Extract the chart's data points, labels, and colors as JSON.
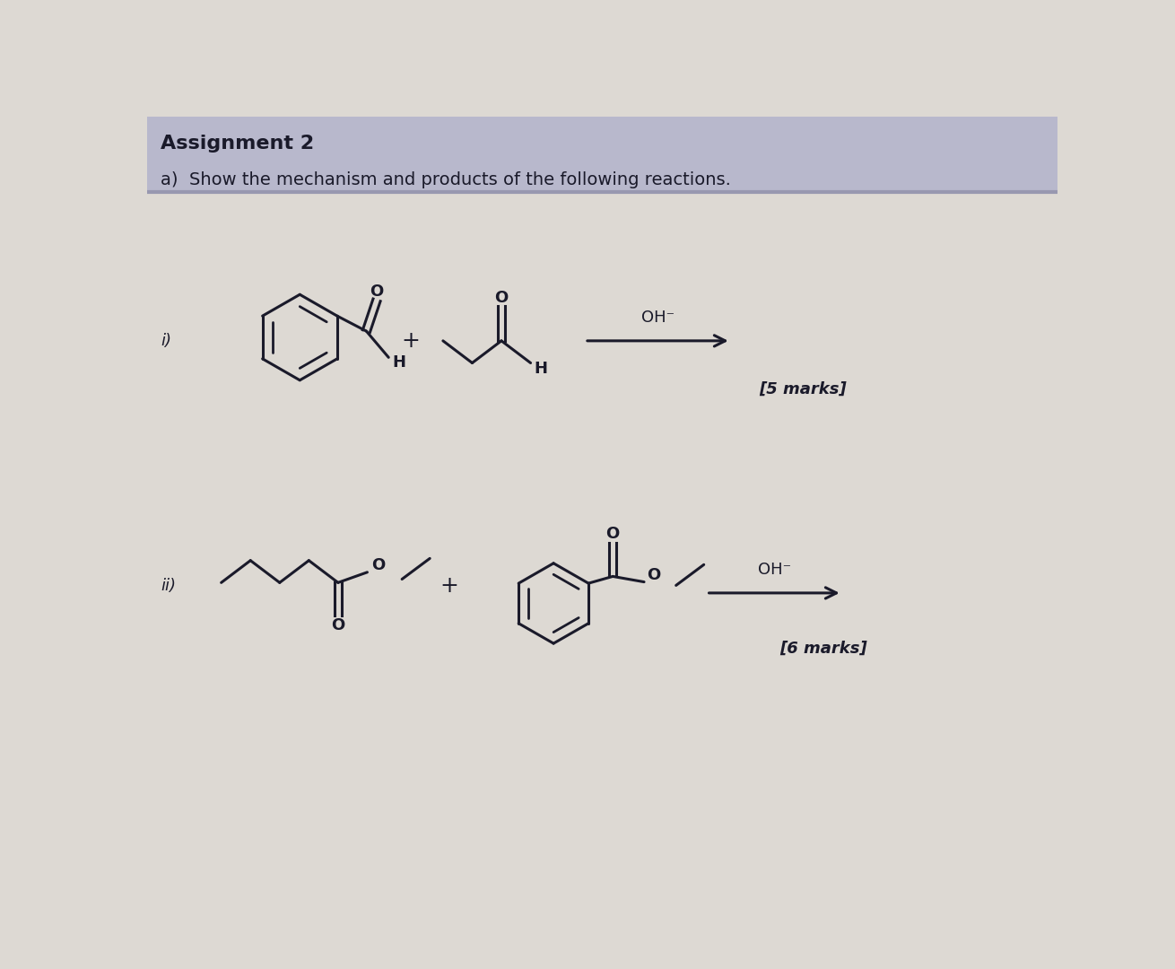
{
  "bg_color": "#ddd9d3",
  "header_bg": "#b8b8cc",
  "header_line_color": "#9898b0",
  "title": "Assignment 2",
  "subtitle": "a)  Show the mechanism and products of the following reactions.",
  "title_fontsize": 16,
  "subtitle_fontsize": 14,
  "label_i": "i)",
  "label_ii": "ii)",
  "marks1": "[5 marks]",
  "marks2": "[6 marks]",
  "text_color": "#1a1a2a",
  "line_color": "#1a1a2a",
  "arrow_color": "#1a1a2a",
  "oh_label": "OH⁻",
  "plus_sign": "+",
  "marks_fontsize": 13,
  "struct_lw": 2.2,
  "inner_lw": 2.0
}
